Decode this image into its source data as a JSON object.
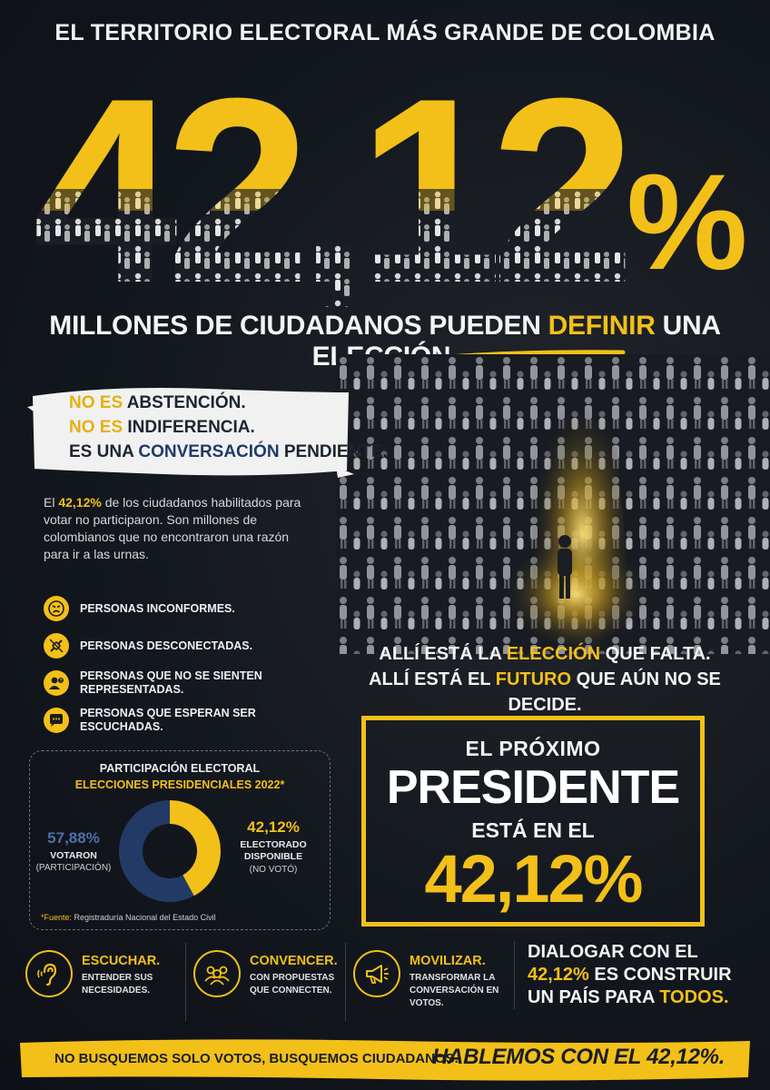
{
  "header": {
    "title": "EL TERRITORIO ELECTORAL MÁS GRANDE DE COLOMBIA"
  },
  "hero": {
    "number": "42,12%"
  },
  "subtitle": {
    "part1": "MILLONES DE CIUDADANOS PUEDEN ",
    "highlight": "DEFINIR",
    "part2": " UNA ELECCIÓN."
  },
  "brush_statements": {
    "line1_prefix": "NO ES",
    "line1_rest": " ABSTENCIÓN.",
    "line2_prefix": "NO ES",
    "line2_rest": " INDIFERENCIA.",
    "line3_prefix": "ES UNA ",
    "line3_highlight": "CONVERSACIÓN",
    "line3_rest": " PENDIENTE."
  },
  "paragraph": {
    "prefix": "El ",
    "highlight": "42,12%",
    "rest": " de los ciudadanos habilitados para votar no participaron. Son millones de colombianos que no encontraron una razón para ir a las urnas."
  },
  "groups": [
    {
      "icon": "angry-face-icon",
      "label": "PERSONAS INCONFORMES."
    },
    {
      "icon": "unplugged-icon",
      "label": "PERSONAS DESCONECTADAS."
    },
    {
      "icon": "person-question-icon",
      "label": "PERSONAS QUE NO SE SIENTEN REPRESENTADAS."
    },
    {
      "icon": "speech-bubble-icon",
      "label": "PERSONAS QUE ESPERAN SER ESCUCHADAS."
    }
  ],
  "right_statement": {
    "l1a": "ALLÍ ESTÁ LA ",
    "l1b": "ELECCIÓN",
    "l1c": " QUE FALTA.",
    "l2a": "ALLÍ ESTÁ EL ",
    "l2b": "FUTURO",
    "l2c": " QUE AÚN NO SE DECIDE."
  },
  "president_box": {
    "line1": "EL PRÓXIMO",
    "line2": "PRESIDENTE",
    "line3": "ESTÁ EN EL",
    "number": "42,12%"
  },
  "chart_data": {
    "type": "pie",
    "title": "PARTICIPACIÓN ELECTORAL",
    "subtitle": "ELECCIONES PRESIDENCIALES 2022*",
    "slices": [
      {
        "pct_label": "57,88%",
        "label": "VOTARON",
        "sublabel": "(PARTICIPACIÓN)",
        "value": 57.88,
        "color": "#243a66"
      },
      {
        "pct_label": "42,12%",
        "label": "ELECTORADO DISPONIBLE",
        "sublabel": "(NO VOTÓ)",
        "value": 42.12,
        "color": "#f2c018"
      }
    ],
    "source_label": "*Fuente:",
    "source": " Registraduría Nacional del Estado Civil"
  },
  "actions": [
    {
      "icon": "ear-icon",
      "title": "ESCUCHAR.",
      "desc": "ENTENDER SUS NECESIDADES."
    },
    {
      "icon": "people-icon",
      "title": "CONVENCER.",
      "desc": "CON PROPUESTAS QUE CONNECTEN."
    },
    {
      "icon": "megaphone-icon",
      "title": "MOVILIZAR.",
      "desc": "TRANSFORMAR LA CONVERSACIÓN EN VOTOS."
    }
  ],
  "dialog": {
    "a": "DIALOGAR CON EL ",
    "b": "42,12%",
    "c": " ES CONSTRUIR UN PAÍS PARA ",
    "d": "TODOS."
  },
  "footer": {
    "left": "NO BUSQUEMOS SOLO VOTOS, BUSQUEMOS CIUDADANOS.",
    "right": "HABLEMOS CON EL 42,12%."
  },
  "colors": {
    "accent": "#f2c018",
    "navy": "#243a66",
    "background": "#12161e"
  }
}
